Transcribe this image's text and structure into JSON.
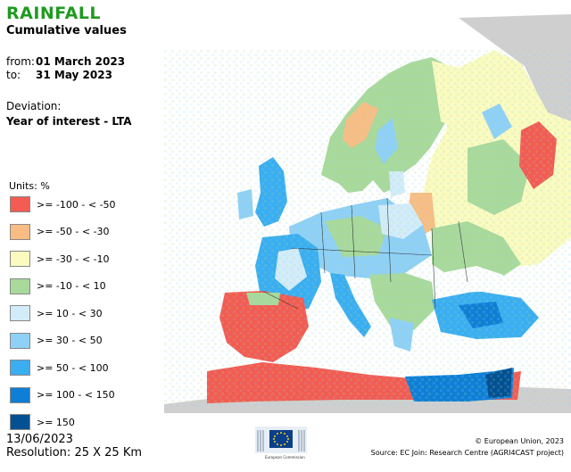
{
  "header": {
    "title": "RAINFALL",
    "subtitle": "Cumulative values",
    "from_label": "from:",
    "from_value": "01 March 2023",
    "to_label": "to:",
    "to_value": "31 May 2023",
    "deviation_label": "Deviation:",
    "deviation_value": "Year of interest - LTA"
  },
  "legend": {
    "units": "Units: %",
    "items": [
      {
        "label": ">= -100 - < -50",
        "color": "#f25c52"
      },
      {
        "label": ">= -50 - < -30",
        "color": "#f9bd84"
      },
      {
        "label": ">= -30 - < -10",
        "color": "#fbfbc0"
      },
      {
        "label": ">= -10 - < 10",
        "color": "#a9d99b"
      },
      {
        "label": ">= 10 - < 30",
        "color": "#d3ecfa"
      },
      {
        "label": ">= 30 - < 50",
        "color": "#8fd0f6"
      },
      {
        "label": ">= 50 - < 100",
        "color": "#3aaef0"
      },
      {
        "label": ">= 100 - < 150",
        "color": "#0f7fd6"
      },
      {
        "label": ">= 150",
        "color": "#035192"
      }
    ]
  },
  "footer": {
    "date": "13/06/2023",
    "resolution": "Resolution: 25 X 25 Km",
    "copyright": "© European Union, 2023",
    "source": "Source: EC Join: Research Centre (AGRI4CAST project)",
    "logo_text": "European Commission"
  },
  "colors": {
    "sea": "#ffffff",
    "non_data_land": "#cfcfcf",
    "borders": "#333333"
  }
}
